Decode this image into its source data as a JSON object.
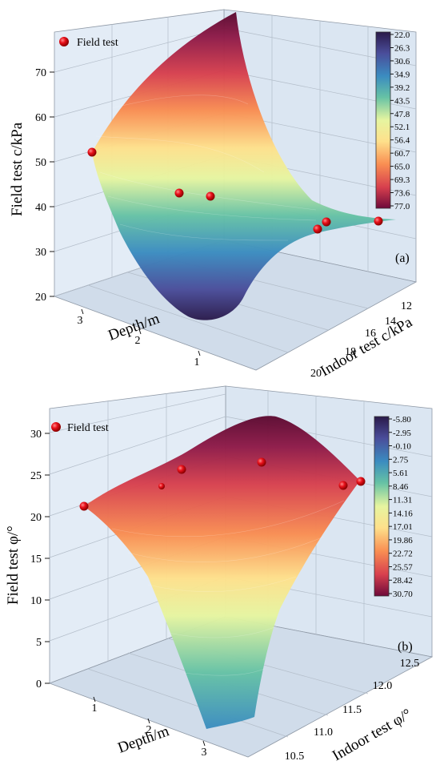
{
  "chart_data": [
    {
      "type": "surface3d",
      "panel_label": "(a)",
      "legend": "Field test",
      "xlabel": "Depth/m",
      "ylabel": "Indoor test c/kPa",
      "zlabel": "Field test c/kPa",
      "x_ticks": [
        "3",
        "2",
        "1"
      ],
      "y_ticks": [
        "12",
        "14",
        "16",
        "18",
        "20"
      ],
      "z_ticks": [
        "20",
        "30",
        "40",
        "50",
        "60",
        "70"
      ],
      "zlim": [
        20,
        77
      ],
      "colorbar_ticks": [
        "22.0",
        "26.3",
        "30.6",
        "34.9",
        "39.2",
        "43.5",
        "47.8",
        "52.1",
        "56.4",
        "60.7",
        "65.0",
        "69.3",
        "73.6",
        "77.0"
      ],
      "points": [
        {
          "depth": 3.3,
          "indoor_c": 20.0,
          "field_c": 51.5
        },
        {
          "depth": 2.0,
          "indoor_c": 19.0,
          "field_c": 42.8
        },
        {
          "depth": 1.5,
          "indoor_c": 18.5,
          "field_c": 42.0
        },
        {
          "depth": 1.0,
          "indoor_c": 14.3,
          "field_c": 35.0
        },
        {
          "depth": 1.0,
          "indoor_c": 14.0,
          "field_c": 36.5
        },
        {
          "depth": 0.5,
          "indoor_c": 11.5,
          "field_c": 36.0
        }
      ]
    },
    {
      "type": "surface3d",
      "panel_label": "(b)",
      "legend": "Field test",
      "xlabel": "Depth/m",
      "ylabel": "Indoor test φ/°",
      "zlabel": "Field test φ/°",
      "x_ticks": [
        "1",
        "2",
        "3"
      ],
      "y_ticks": [
        "10.5",
        "11.0",
        "11.5",
        "12.0",
        "12.5"
      ],
      "z_ticks": [
        "0",
        "5",
        "10",
        "15",
        "20",
        "25",
        "30"
      ],
      "zlim": [
        0,
        30.7
      ],
      "colorbar_ticks": [
        "-5.80",
        "-2.95",
        "-0.10",
        "2.75",
        "5.61",
        "8.46",
        "11.31",
        "14.16",
        "17.01",
        "19.86",
        "22.72",
        "25.57",
        "28.42",
        "30.70"
      ],
      "points": [
        {
          "depth": 0.5,
          "indoor_phi": 12.3,
          "field_phi": 22.0
        },
        {
          "depth": 1.5,
          "indoor_phi": 12.4,
          "field_phi": 24.0
        },
        {
          "depth": 1.7,
          "indoor_phi": 12.5,
          "field_phi": 26.5
        },
        {
          "depth": 2.5,
          "indoor_phi": 12.4,
          "field_phi": 27.0
        },
        {
          "depth": 3.1,
          "indoor_phi": 11.9,
          "field_phi": 24.5
        },
        {
          "depth": 3.3,
          "indoor_phi": 11.6,
          "field_phi": 25.0
        }
      ]
    }
  ],
  "colors": {
    "pane_back": "#dbe6f2",
    "pane_side": "#e6eef8",
    "pane_floor": "#d0dcea",
    "grid": "#b3bdc9",
    "point": "#e8101a"
  }
}
